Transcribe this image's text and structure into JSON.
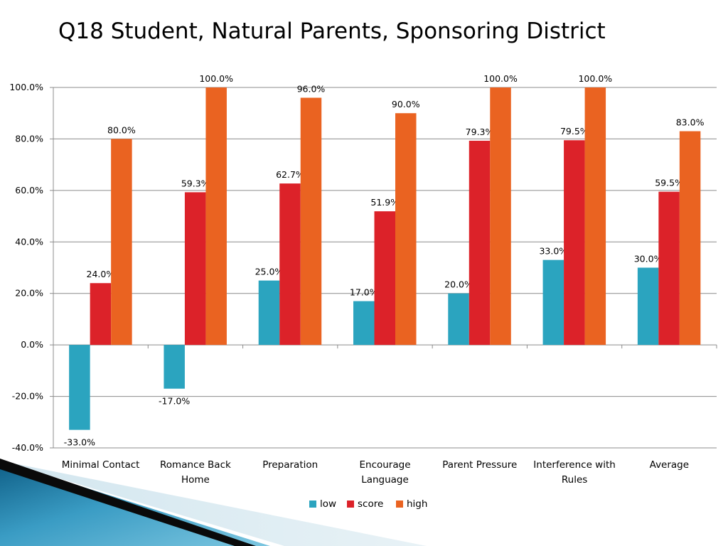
{
  "slide": {
    "title": "Q18 Student, Natural Parents, Sponsoring District"
  },
  "colors": {
    "low": "#2ba4bf",
    "score": "#dc2229",
    "high": "#ea6321",
    "grid": "#8c8c8c"
  },
  "chart_data": {
    "type": "bar",
    "title": "",
    "categories": [
      [
        "Minimal Contact"
      ],
      [
        "Romance Back",
        "Home"
      ],
      [
        "Preparation"
      ],
      [
        "Encourage",
        "Language"
      ],
      [
        "Parent Pressure"
      ],
      [
        "Interference with",
        "Rules"
      ],
      [
        "Average"
      ]
    ],
    "series": [
      {
        "name": "low",
        "values": [
          -33.0,
          -17.0,
          25.0,
          17.0,
          20.0,
          33.0,
          30.0
        ],
        "labels": [
          "-33.0%",
          "-17.0%",
          "25.0%",
          "17.0%",
          "20.0%",
          "33.0%",
          "30.0%"
        ]
      },
      {
        "name": "score",
        "values": [
          24.0,
          59.3,
          62.7,
          51.9,
          79.3,
          79.5,
          59.5
        ],
        "labels": [
          "24.0%",
          "59.3%",
          "62.7%",
          "51.9%",
          "79.3%",
          "79.5%",
          "59.5%"
        ]
      },
      {
        "name": "high",
        "values": [
          80.0,
          100.0,
          96.0,
          90.0,
          100.0,
          100.0,
          83.0
        ],
        "labels": [
          "80.0%",
          "100.0%",
          "96.0%",
          "90.0%",
          "100.0%",
          "100.0%",
          "83.0%"
        ]
      }
    ],
    "yticks": [
      {
        "v": 100,
        "label": "100.0%"
      },
      {
        "v": 80,
        "label": "80.0%"
      },
      {
        "v": 60,
        "label": "60.0%"
      },
      {
        "v": 40,
        "label": "40.0%"
      },
      {
        "v": 20,
        "label": "20.0%"
      },
      {
        "v": 0,
        "label": "0.0%"
      },
      {
        "v": -20,
        "label": "-20.0%"
      },
      {
        "v": -40,
        "label": "-40.0%"
      }
    ],
    "ylim": [
      -40,
      100
    ],
    "xlabel": "",
    "ylabel": "",
    "grid": true,
    "legend": "bottom"
  }
}
